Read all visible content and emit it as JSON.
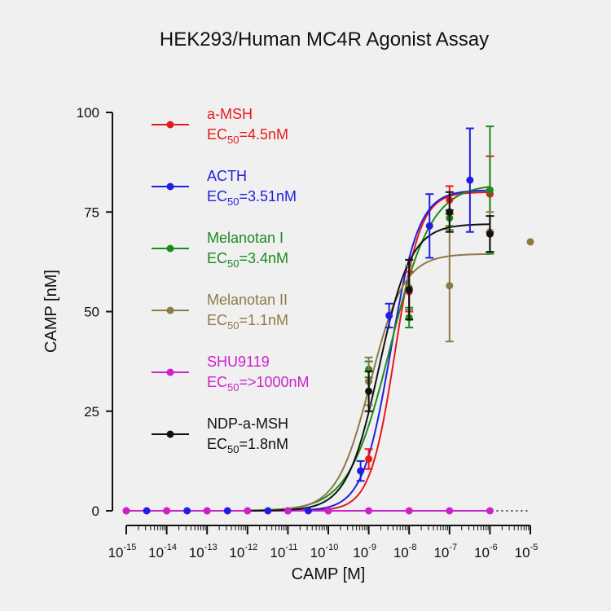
{
  "chart_data": {
    "type": "scatter",
    "title": "HEK293/Human MC4R Agonist Assay",
    "xlabel": "CAMP [M]",
    "ylabel": "CAMP [nM]",
    "xscale": "log",
    "xlim": [
      1e-15,
      1e-05
    ],
    "ylim": [
      0,
      100
    ],
    "x_tick_labels": [
      {
        "base": "10",
        "exp": "-15"
      },
      {
        "base": "10",
        "exp": "-14"
      },
      {
        "base": "10",
        "exp": "-13"
      },
      {
        "base": "10",
        "exp": "-12"
      },
      {
        "base": "10",
        "exp": "-11"
      },
      {
        "base": "10",
        "exp": "-10"
      },
      {
        "base": "10",
        "exp": "-9"
      },
      {
        "base": "10",
        "exp": "-8"
      },
      {
        "base": "10",
        "exp": "-7"
      },
      {
        "base": "10",
        "exp": "-6"
      },
      {
        "base": "10",
        "exp": "-5"
      }
    ],
    "y_ticks": [
      "0",
      "25",
      "50",
      "75",
      "100"
    ],
    "legend_position": "left-inside",
    "series": [
      {
        "name": "a-MSH",
        "ec50_label": "EC",
        "ec50_sub": "50",
        "ec50_value": "=4.5nM",
        "color": "#e8191a",
        "points": [
          {
            "x": 1e-15,
            "y": 0
          },
          {
            "x": 1e-14,
            "y": 0
          },
          {
            "x": 1e-13,
            "y": 0
          },
          {
            "x": 1e-12,
            "y": 0
          },
          {
            "x": 1e-11,
            "y": 0
          },
          {
            "x": 1e-10,
            "y": 0
          },
          {
            "x": 1e-09,
            "y": 13,
            "err": 2.5
          },
          {
            "x": 1e-08,
            "y": 55,
            "err": 5
          },
          {
            "x": 1e-07,
            "y": 78,
            "err": 3.5
          },
          {
            "x": 1e-06,
            "y": 79.5,
            "err": 9.5
          }
        ],
        "curve": {
          "bottom": 0,
          "top": 80,
          "ec50": 4.5e-09,
          "hill": 1.4
        }
      },
      {
        "name": "ACTH",
        "ec50_label": "EC",
        "ec50_sub": "50",
        "ec50_value": "=3.51nM",
        "color": "#1f1fe0",
        "points": [
          {
            "x": 3.2e-15,
            "y": 0
          },
          {
            "x": 3.2e-14,
            "y": 0
          },
          {
            "x": 3.2e-13,
            "y": 0
          },
          {
            "x": 3.2e-12,
            "y": 0
          },
          {
            "x": 3.2e-11,
            "y": 0
          },
          {
            "x": 6.3e-10,
            "y": 10,
            "err": 2.5
          },
          {
            "x": 3.2e-09,
            "y": 49,
            "err": 3
          },
          {
            "x": 3.2e-08,
            "y": 71.5,
            "err": 8
          },
          {
            "x": 3.2e-07,
            "y": 83,
            "err": 13
          }
        ],
        "curve": {
          "bottom": 0,
          "top": 80.5,
          "ec50": 3.51e-09,
          "hill": 1.25
        }
      },
      {
        "name": "Melanotan I",
        "ec50_label": "EC",
        "ec50_sub": "50",
        "ec50_value": "=3.4nM",
        "color": "#1d8a1d",
        "points": [
          {
            "x": 1e-09,
            "y": 35.5,
            "err": 2
          },
          {
            "x": 1e-08,
            "y": 48.5,
            "err": 2.5
          },
          {
            "x": 1e-07,
            "y": 73.5,
            "err": 2
          },
          {
            "x": 1e-06,
            "y": 80.5,
            "err": 16
          }
        ],
        "curve": {
          "bottom": 0,
          "top": 82,
          "ec50": 3.4e-09,
          "hill": 0.85
        }
      },
      {
        "name": "Melanotan II",
        "ec50_label": "EC",
        "ec50_sub": "50",
        "ec50_value": "=1.1nM",
        "color": "#8c7a45",
        "points": [
          {
            "x": 1e-09,
            "y": 32.5,
            "err": 6
          },
          {
            "x": 1e-08,
            "y": 56,
            "err": 5.5
          },
          {
            "x": 1e-07,
            "y": 56.5,
            "err": 14
          },
          {
            "x": 1e-06,
            "y": 70,
            "err": 5
          },
          {
            "x": 1e-05,
            "y": 67.5
          }
        ],
        "curve": {
          "bottom": 0,
          "top": 64.5,
          "ec50": 1.1e-09,
          "hill": 1.05
        }
      },
      {
        "name": "SHU9119",
        "ec50_label": "EC",
        "ec50_sub": "50",
        "ec50_value": "=>1000nM",
        "color": "#cc22cc",
        "points": [
          {
            "x": 1e-15,
            "y": 0
          },
          {
            "x": 1e-14,
            "y": 0
          },
          {
            "x": 1e-13,
            "y": 0
          },
          {
            "x": 1e-12,
            "y": 0
          },
          {
            "x": 1e-11,
            "y": 0
          },
          {
            "x": 1e-10,
            "y": 0
          },
          {
            "x": 1e-09,
            "y": 0
          },
          {
            "x": 1e-08,
            "y": 0
          },
          {
            "x": 1e-07,
            "y": 0
          },
          {
            "x": 1e-06,
            "y": 0
          }
        ],
        "curve": {
          "bottom": 0,
          "top": 0,
          "ec50": 1e-06,
          "hill": 1,
          "dotted_to": 1e-05
        }
      },
      {
        "name": "NDP-a-MSH",
        "ec50_label": "EC",
        "ec50_sub": "50",
        "ec50_value": "=1.8nM",
        "color": "#111111",
        "points": [
          {
            "x": 1e-09,
            "y": 30,
            "err": 5
          },
          {
            "x": 1e-08,
            "y": 55.5,
            "err": 7.5
          },
          {
            "x": 1e-07,
            "y": 75,
            "err": 5
          },
          {
            "x": 1e-06,
            "y": 69.5,
            "err": 4.5
          }
        ],
        "curve": {
          "bottom": 0,
          "top": 72,
          "ec50": 1.8e-09,
          "hill": 1.1
        }
      }
    ]
  }
}
